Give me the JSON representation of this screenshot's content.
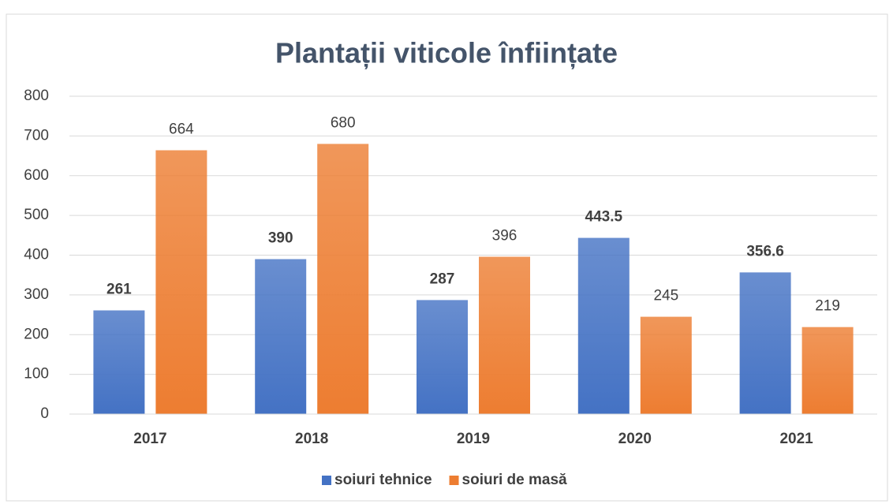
{
  "chart_data": {
    "type": "bar",
    "title": "Plantații viticole înființate",
    "categories": [
      "2017",
      "2018",
      "2019",
      "2020",
      "2021"
    ],
    "series": [
      {
        "name": "soiuri tehnice",
        "color": "#4472c4",
        "values": [
          261,
          390,
          287,
          443.5,
          356.6
        ]
      },
      {
        "name": "soiuri de masă",
        "color": "#ed7d31",
        "values": [
          664,
          680,
          396,
          245,
          219
        ]
      }
    ],
    "ylim": [
      0,
      800
    ],
    "yticks": [
      0,
      100,
      200,
      300,
      400,
      500,
      600,
      700,
      800
    ],
    "grid": true,
    "legend": "bottom"
  }
}
